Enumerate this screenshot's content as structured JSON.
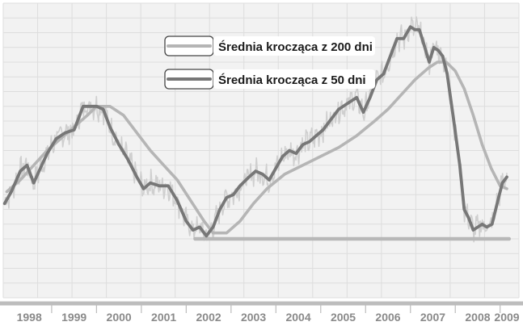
{
  "chart_data": {
    "type": "line",
    "title": "",
    "xlabel": "",
    "ylabel": "",
    "x_ticks": [
      "1998",
      "1999",
      "2000",
      "2001",
      "2002",
      "2003",
      "2004",
      "2005",
      "2006",
      "2007",
      "2008",
      "2009"
    ],
    "xlim": [
      1997.92,
      2009.42
    ],
    "ylim": [
      0,
      100
    ],
    "grid": true,
    "legend_position": "top-center",
    "colors": {
      "background": "#ffffff",
      "plot_background": "#f2f2f2",
      "grid": "#dddddd",
      "price": "#cfcfcf",
      "ma50": "#777777",
      "ma200": "#b5b5b5",
      "support": "#b8b8b8",
      "axis": "#bdbdbd"
    },
    "support_line": {
      "x": [
        2002.2,
        2009.2
      ],
      "y": 20
    },
    "series": [
      {
        "name": "Średnia krocząca z 200 dni",
        "style": "thick-light",
        "x": [
          1998.0,
          1998.3,
          1998.6,
          1998.9,
          1999.2,
          1999.5,
          1999.8,
          2000.0,
          2000.3,
          2000.6,
          2000.9,
          2001.2,
          2001.5,
          2001.8,
          2002.1,
          2002.4,
          2002.6,
          2002.9,
          2003.2,
          2003.5,
          2003.8,
          2004.2,
          2004.6,
          2005.0,
          2005.4,
          2005.8,
          2006.2,
          2006.5,
          2006.8,
          2007.1,
          2007.4,
          2007.6,
          2007.8,
          2008.0,
          2008.2,
          2008.4,
          2008.6,
          2008.8,
          2009.0,
          2009.15
        ],
        "y": [
          36,
          40,
          45,
          50,
          54,
          58,
          62,
          65,
          65,
          62,
          56,
          50,
          45,
          40,
          33,
          26,
          22,
          22,
          26,
          32,
          37,
          42,
          45,
          48,
          51,
          55,
          60,
          64,
          69,
          74,
          78,
          80,
          80,
          77,
          71,
          62,
          52,
          44,
          38,
          37
        ]
      },
      {
        "name": "Średnia krocząca z 50 dni",
        "style": "thick-dark",
        "x": [
          1997.95,
          1998.1,
          1998.3,
          1998.45,
          1998.6,
          1998.75,
          1998.9,
          1999.1,
          1999.3,
          1999.5,
          1999.7,
          1999.85,
          2000.0,
          2000.15,
          2000.3,
          2000.5,
          2000.7,
          2000.9,
          2001.05,
          2001.2,
          2001.4,
          2001.6,
          2001.8,
          2002.0,
          2002.15,
          2002.3,
          2002.45,
          2002.6,
          2002.75,
          2002.9,
          2003.05,
          2003.2,
          2003.4,
          2003.55,
          2003.7,
          2003.85,
          2004.0,
          2004.15,
          2004.3,
          2004.45,
          2004.6,
          2004.75,
          2004.9,
          2005.05,
          2005.2,
          2005.4,
          2005.6,
          2005.8,
          2005.95,
          2006.1,
          2006.25,
          2006.4,
          2006.55,
          2006.7,
          2006.85,
          2007.0,
          2007.1,
          2007.2,
          2007.3,
          2007.42,
          2007.52,
          2007.62,
          2007.72,
          2007.82,
          2007.95,
          2008.1,
          2008.2,
          2008.3,
          2008.4,
          2008.5,
          2008.6,
          2008.7,
          2008.82,
          2008.95,
          2009.05,
          2009.15
        ],
        "y": [
          32,
          36,
          43,
          45,
          39,
          44,
          49,
          54,
          56,
          57,
          65,
          65,
          65,
          64,
          58,
          52,
          47,
          41,
          37,
          39,
          38,
          38,
          33,
          26,
          23,
          24,
          21,
          24,
          30,
          34,
          35,
          38,
          41,
          43,
          42,
          40,
          44,
          48,
          50,
          49,
          52,
          53,
          55,
          57,
          60,
          64,
          66,
          68,
          63,
          68,
          74,
          76,
          82,
          88,
          88,
          92,
          91,
          91,
          86,
          80,
          85,
          84,
          82,
          76,
          62,
          45,
          30,
          27,
          23,
          24,
          25,
          24,
          25,
          33,
          39,
          41
        ]
      }
    ]
  }
}
